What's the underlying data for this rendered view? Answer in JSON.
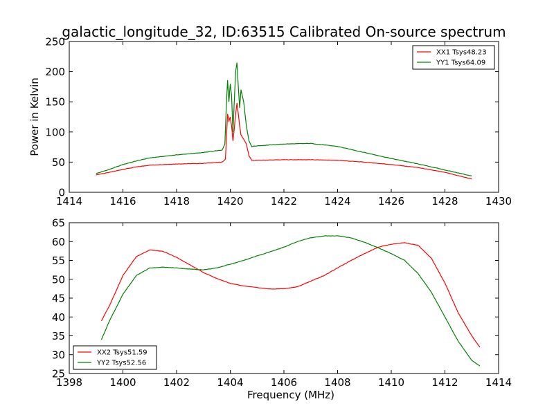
{
  "title": "galactic_longitude_32, ID:63515 Calibrated On-source spectrum",
  "colors": {
    "xx": "#ff0000",
    "yy": "#008000"
  },
  "chart_data": [
    {
      "type": "line",
      "xlim": [
        1414,
        1430
      ],
      "ylim": [
        0,
        250
      ],
      "xticks": [
        "1414",
        "1416",
        "1418",
        "1420",
        "1422",
        "1424",
        "1426",
        "1428",
        "1430"
      ],
      "yticks": [
        "0",
        "50",
        "100",
        "150",
        "200",
        "250"
      ],
      "xlabel": "",
      "ylabel": "Power in Kelvin",
      "legend_position": "top-right",
      "grid": false,
      "series": [
        {
          "name": "XX1 Tsys48.23",
          "x": [
            1415,
            1415.5,
            1416,
            1416.5,
            1417,
            1418,
            1419,
            1419.7,
            1419.82,
            1419.9,
            1419.95,
            1420.0,
            1420.05,
            1420.1,
            1420.15,
            1420.2,
            1420.25,
            1420.3,
            1420.35,
            1420.4,
            1420.5,
            1420.6,
            1420.7,
            1420.8,
            1421,
            1422,
            1423,
            1424,
            1425,
            1426,
            1427,
            1428,
            1429
          ],
          "y": [
            29,
            33,
            38,
            42,
            45,
            47,
            48,
            50,
            55,
            130,
            118,
            125,
            110,
            85,
            105,
            130,
            148,
            130,
            110,
            95,
            88,
            80,
            60,
            53,
            53,
            54,
            54,
            53,
            50,
            46,
            41,
            33,
            22
          ]
        },
        {
          "name": "YY1 Tsys64.09",
          "x": [
            1415,
            1415.5,
            1416,
            1416.5,
            1417,
            1418,
            1419,
            1419.7,
            1419.8,
            1419.85,
            1419.9,
            1419.95,
            1420.0,
            1420.05,
            1420.1,
            1420.15,
            1420.2,
            1420.25,
            1420.3,
            1420.35,
            1420.4,
            1420.5,
            1420.6,
            1420.7,
            1420.8,
            1421,
            1422,
            1423,
            1424,
            1425,
            1426,
            1427,
            1428,
            1429
          ],
          "y": [
            31,
            38,
            46,
            52,
            57,
            62,
            66,
            70,
            80,
            140,
            186,
            150,
            180,
            160,
            100,
            150,
            200,
            215,
            175,
            140,
            170,
            150,
            110,
            85,
            76,
            77,
            80,
            81,
            76,
            66,
            56,
            47,
            37,
            27
          ]
        }
      ]
    },
    {
      "type": "line",
      "xlim": [
        1398,
        1414
      ],
      "ylim": [
        25,
        65
      ],
      "xticks": [
        "1398",
        "1400",
        "1402",
        "1404",
        "1406",
        "1408",
        "1410",
        "1412",
        "1414"
      ],
      "yticks": [
        "25",
        "30",
        "35",
        "40",
        "45",
        "50",
        "55",
        "60",
        "65"
      ],
      "xlabel": "Frequency (MHz)",
      "ylabel": "",
      "legend_position": "bottom-left",
      "grid": false,
      "series": [
        {
          "name": "XX2 Tsys51.59",
          "x": [
            1399.2,
            1399.5,
            1400,
            1400.5,
            1401,
            1401.5,
            1402,
            1402.5,
            1403,
            1403.5,
            1404,
            1404.5,
            1405,
            1405.5,
            1406,
            1406.5,
            1407,
            1407.5,
            1408,
            1408.5,
            1409,
            1409.5,
            1410,
            1410.5,
            1411,
            1411.5,
            1412,
            1412.5,
            1413,
            1413.3
          ],
          "y": [
            39,
            43,
            51,
            56,
            57.8,
            57.4,
            55.8,
            53.8,
            51.8,
            50.2,
            48.9,
            48.2,
            47.8,
            47.4,
            47.5,
            48,
            49.5,
            51,
            53,
            55,
            56.8,
            58.5,
            59.3,
            59.7,
            59,
            55.5,
            49,
            41,
            35,
            32
          ]
        },
        {
          "name": "YY2 Tsys52.56",
          "x": [
            1399.2,
            1399.5,
            1400,
            1400.5,
            1401,
            1401.5,
            1402,
            1402.5,
            1403,
            1403.5,
            1404,
            1404.5,
            1405,
            1405.5,
            1406,
            1406.5,
            1407,
            1407.5,
            1408,
            1408.5,
            1409,
            1409.5,
            1410,
            1410.5,
            1411,
            1411.5,
            1412,
            1412.5,
            1413,
            1413.3
          ],
          "y": [
            34,
            39,
            46,
            51,
            53,
            53.2,
            53,
            52.7,
            52.5,
            53,
            54,
            55,
            56.2,
            57.3,
            58.5,
            60,
            61,
            61.5,
            61.5,
            61,
            59.8,
            58.4,
            56.8,
            55,
            51.5,
            46.5,
            40,
            33.5,
            28.5,
            27
          ]
        }
      ]
    }
  ]
}
